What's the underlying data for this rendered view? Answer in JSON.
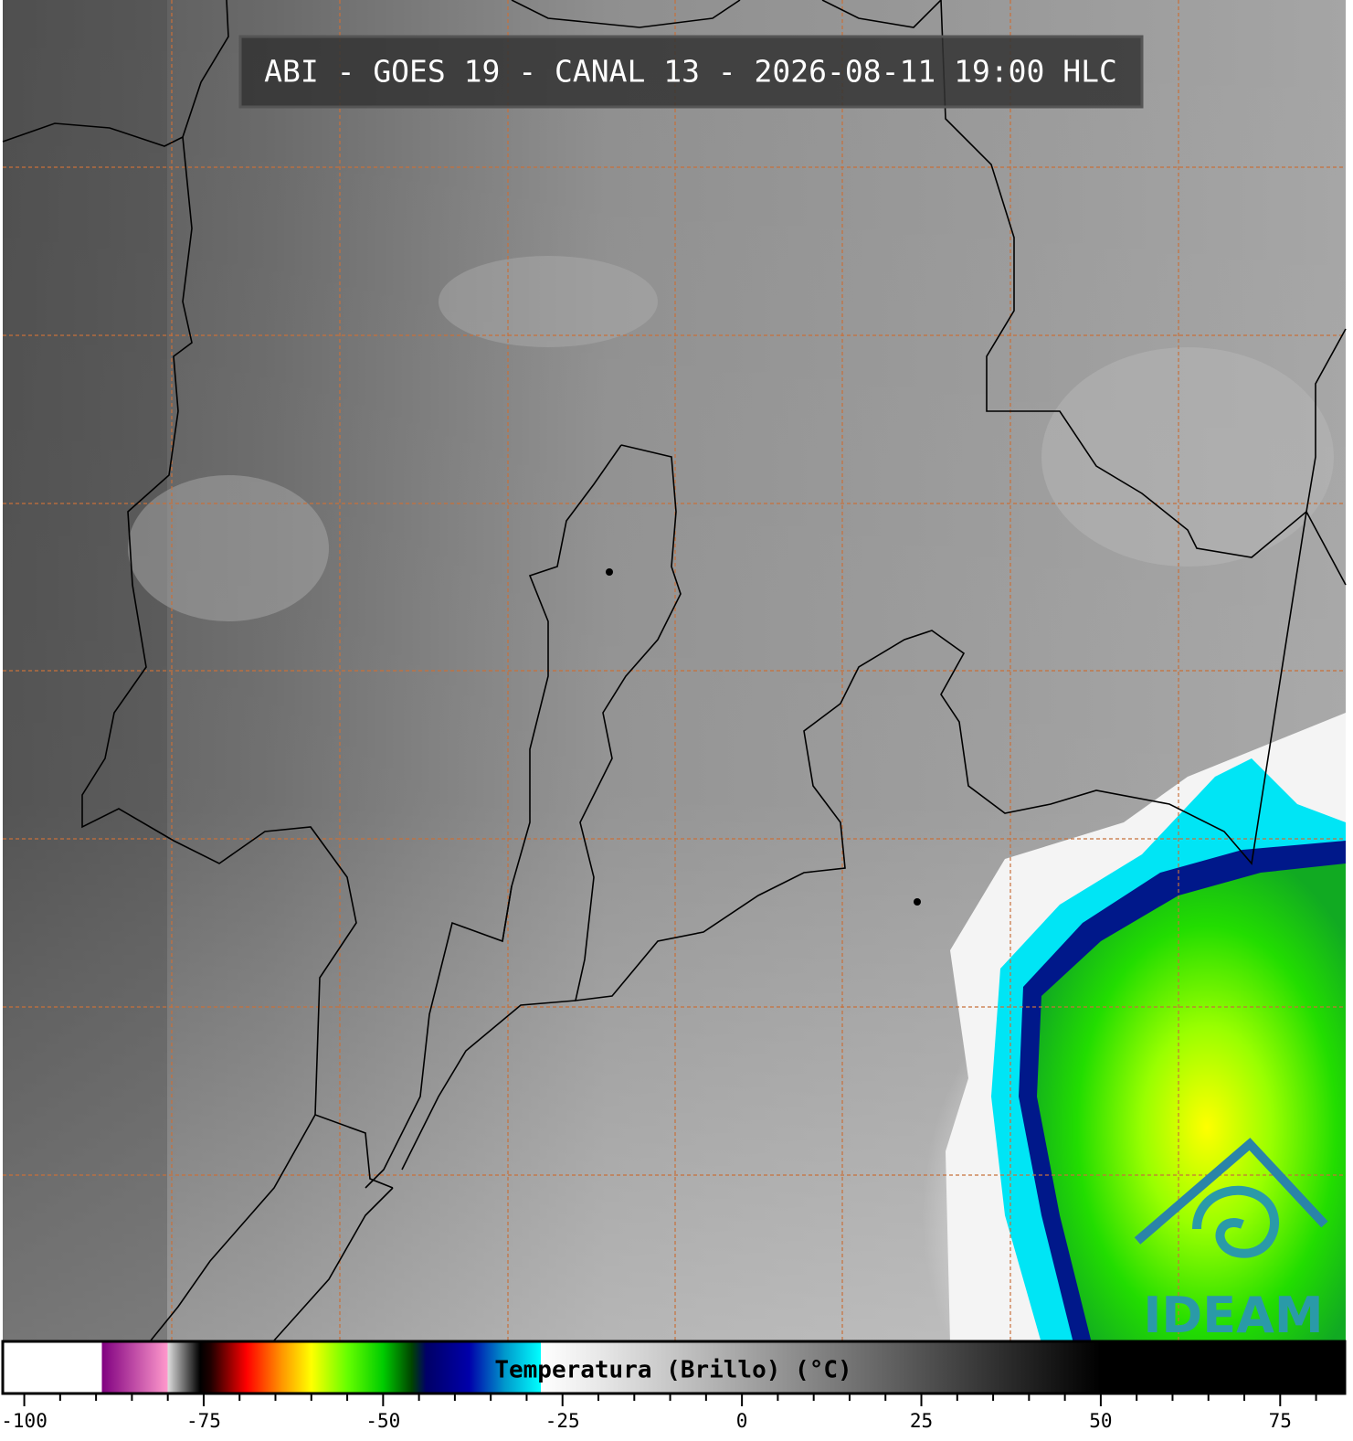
{
  "header": {
    "title": "ABI - GOES 19 - CANAL 13 - 2026-08-11 19:00 HLC"
  },
  "logo": {
    "text": "IDEAM"
  },
  "chart_data": {
    "type": "colorbar",
    "label": "Temperatura (Brillo) (°C)",
    "xlim": [
      -103,
      84
    ],
    "xticks": [
      -100,
      -75,
      -50,
      -25,
      0,
      25,
      50,
      75
    ],
    "minor_xticks": [
      -95,
      -90,
      -85,
      -80,
      -70,
      -65,
      -60,
      -55,
      -45,
      -40,
      -35,
      -30,
      -20,
      -15,
      -10,
      -5,
      5,
      10,
      15,
      20,
      30,
      35,
      40,
      45,
      55,
      60,
      65,
      70,
      80
    ],
    "colormap": [
      {
        "value": -103,
        "color": "#ffffff"
      },
      {
        "value": -89.2,
        "color": "#ffffff"
      },
      {
        "value": -89.2,
        "color": "#800080"
      },
      {
        "value": -80,
        "color": "#ff99cc"
      },
      {
        "value": -80,
        "color": "#dddddd"
      },
      {
        "value": -75.5,
        "color": "#000000"
      },
      {
        "value": -74,
        "color": "#200000"
      },
      {
        "value": -69,
        "color": "#ff0000"
      },
      {
        "value": -64,
        "color": "#ff9900"
      },
      {
        "value": -60,
        "color": "#ffff00"
      },
      {
        "value": -55,
        "color": "#66ff00"
      },
      {
        "value": -50,
        "color": "#00cc00"
      },
      {
        "value": -46,
        "color": "#004400"
      },
      {
        "value": -44,
        "color": "#000066"
      },
      {
        "value": -38,
        "color": "#0000aa"
      },
      {
        "value": -33,
        "color": "#0099cc"
      },
      {
        "value": -28,
        "color": "#00ffff"
      },
      {
        "value": -28,
        "color": "#ffffff"
      },
      {
        "value": -20,
        "color": "#e8e8e8"
      },
      {
        "value": 50,
        "color": "#000000"
      },
      {
        "value": 84,
        "color": "#000000"
      }
    ]
  }
}
